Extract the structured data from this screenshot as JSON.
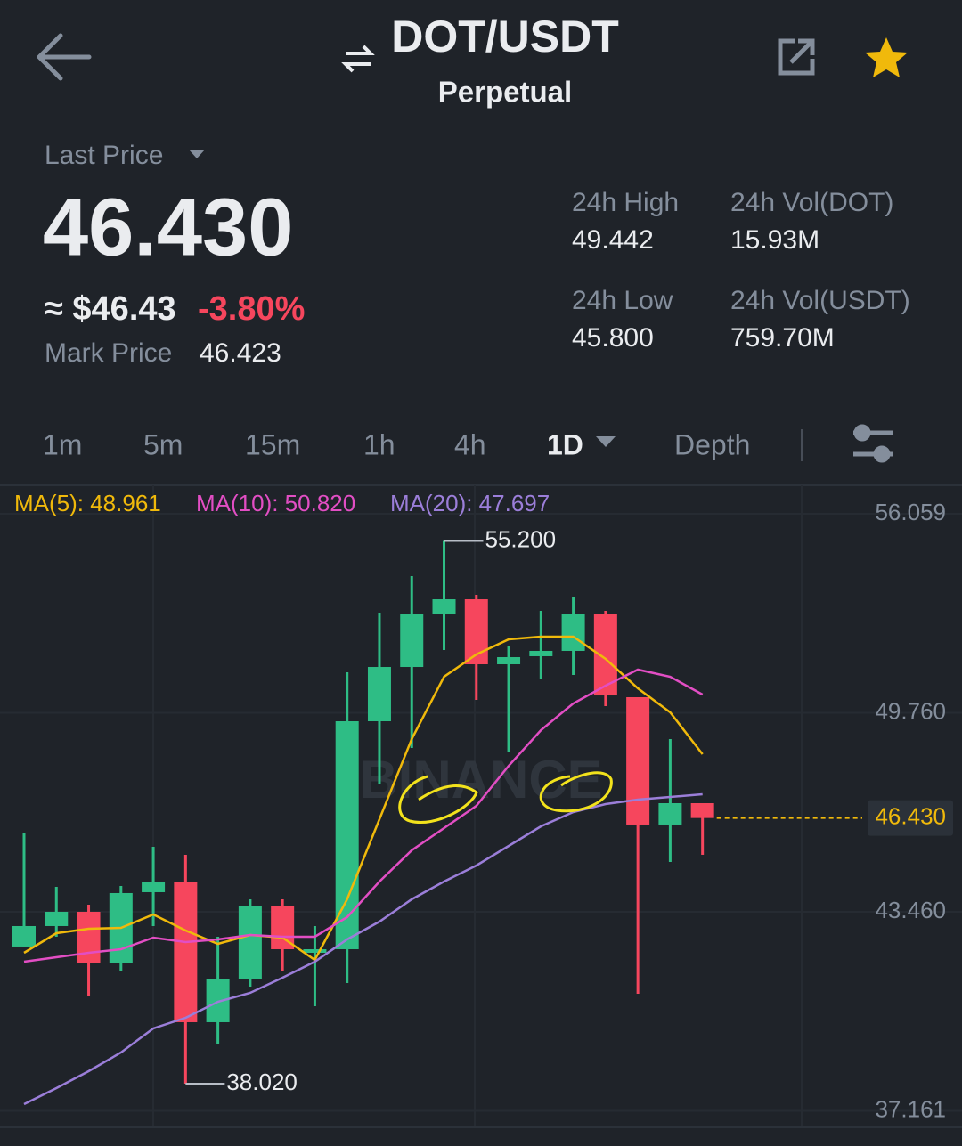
{
  "header": {
    "pair": "DOT/USDT",
    "subtitle": "Perpetual"
  },
  "price": {
    "label": "Last Price",
    "last": "46.430",
    "usd": "≈ $46.43",
    "change": "-3.80%",
    "mark_label": "Mark Price",
    "mark": "46.423"
  },
  "stats": [
    {
      "label": "24h High",
      "value": "49.442"
    },
    {
      "label": "24h Vol(DOT)",
      "value": "15.93M"
    },
    {
      "label": "24h Low",
      "value": "45.800"
    },
    {
      "label": "24h Vol(USDT)",
      "value": "759.70M"
    }
  ],
  "intervals": [
    "1m",
    "5m",
    "15m",
    "1h",
    "4h",
    "1D",
    "Depth"
  ],
  "chart_data": {
    "type": "candlestick",
    "watermark": "BINANCE",
    "up_color": "#2ebd85",
    "down_color": "#f6465d",
    "open": [
      42.362,
      43.01,
      43.461,
      41.826,
      44.081,
      44.419,
      39.966,
      41.319,
      43.658,
      42.164,
      42.277,
      49.492,
      51.211,
      52.874,
      53.353,
      51.296,
      51.55,
      51.719,
      52.902,
      50.253,
      46.223,
      46.899
    ],
    "high": [
      45.941,
      44.25,
      43.686,
      44.278,
      45.518,
      45.265,
      42.672,
      43.855,
      43.855,
      43.01,
      51.042,
      52.931,
      54.086,
      55.2,
      53.494,
      51.888,
      52.987,
      53.41,
      52.987,
      50.253,
      48.928,
      46.899
    ],
    "low": [
      42.362,
      42.672,
      40.811,
      41.601,
      43.01,
      38.02,
      39.261,
      41.093,
      41.601,
      40.473,
      41.206,
      47.519,
      48.647,
      51.747,
      50.169,
      48.506,
      50.817,
      50.958,
      49.971,
      40.868,
      45.039,
      45.265
    ],
    "close": [
      43.01,
      43.461,
      41.826,
      44.053,
      44.419,
      39.966,
      41.319,
      43.658,
      42.277,
      42.277,
      49.492,
      51.211,
      52.874,
      53.353,
      51.296,
      51.521,
      51.719,
      52.902,
      50.309,
      46.223,
      46.899,
      46.43
    ],
    "series": [
      {
        "name": "MA(5): 48.961",
        "color": "#f0b90b",
        "values": [
          42.164,
          42.784,
          42.925,
          42.953,
          43.376,
          42.869,
          42.446,
          42.728,
          42.643,
          41.939,
          43.855,
          46.392,
          48.928,
          50.901,
          51.606,
          52.085,
          52.17,
          52.17,
          51.465,
          50.535,
          49.774,
          48.449
        ]
      },
      {
        "name": "MA(10): 50.820",
        "color": "#e24ec4",
        "values": [
          41.883,
          42.024,
          42.164,
          42.277,
          42.643,
          42.502,
          42.587,
          42.728,
          42.672,
          42.672,
          43.292,
          44.419,
          45.406,
          46.111,
          46.815,
          48.083,
          49.21,
          50.056,
          50.619,
          51.127,
          50.901,
          50.337
        ]
      },
      {
        "name": "MA(20): 47.697",
        "color": "#9b7ed9",
        "values": [
          37.373,
          37.88,
          38.415,
          39.007,
          39.768,
          40.107,
          40.614,
          40.896,
          41.375,
          41.882,
          42.587,
          43.151,
          43.855,
          44.419,
          44.926,
          45.546,
          46.166,
          46.617,
          46.871,
          47.012,
          47.097,
          47.181
        ]
      }
    ],
    "ylim": [
      36.668,
      56.961
    ],
    "yticks": [
      56.059,
      {
        "value": 49.76,
        "label": "49.760"
      },
      {
        "value": 43.46,
        "label": "43.460"
      },
      37.161
    ],
    "grid": true,
    "annotations": [
      {
        "value": 55.2,
        "label": "55.200"
      },
      {
        "value": 38.02,
        "label": "38.020"
      }
    ],
    "last_price_line": {
      "value": 46.43,
      "label": "46.430",
      "color": "#f0b90b"
    }
  }
}
